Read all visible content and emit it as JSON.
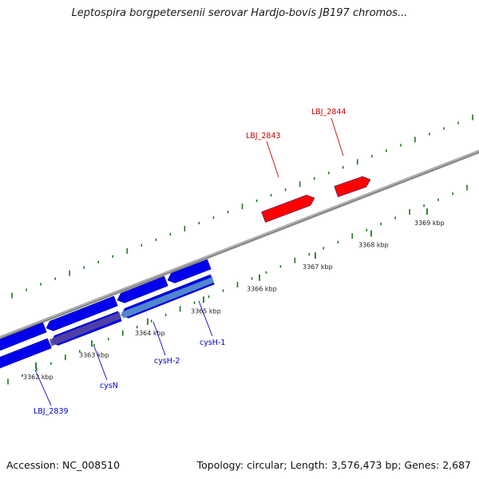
{
  "title": "Leptospira borgpetersenii serovar Hardjo-bovis JB197 chromos...",
  "footer": {
    "accession": "Accession: NC_008510",
    "summary": "Topology: circular; Length: 3,576,473 bp; Genes: 2,687"
  },
  "colors": {
    "forward_gene": "#ff0000",
    "reverse_gene": "#0000ee",
    "reverse_label": "#0000cc",
    "forward_label": "#cc0000",
    "tick": "#1a7a1a",
    "backbone": "#8a8a8a",
    "highlight": "#5a96c8"
  },
  "ticks": [
    {
      "label": "3362 kbp",
      "kbp": 3362
    },
    {
      "label": "3363 kbp",
      "kbp": 3363
    },
    {
      "label": "3364 kbp",
      "kbp": 3364
    },
    {
      "label": "3365 kbp",
      "kbp": 3365
    },
    {
      "label": "3366 kbp",
      "kbp": 3366
    },
    {
      "label": "3367 kbp",
      "kbp": 3367
    },
    {
      "label": "3368 kbp",
      "kbp": 3368
    },
    {
      "label": "3369 kbp",
      "kbp": 3369
    }
  ],
  "gene_labels": [
    {
      "name": "LBJ_2839",
      "strand": "reverse"
    },
    {
      "name": "cysN",
      "strand": "reverse"
    },
    {
      "name": "cysH-2",
      "strand": "reverse"
    },
    {
      "name": "cysH-1",
      "strand": "reverse"
    },
    {
      "name": "LBJ_2843",
      "strand": "forward"
    },
    {
      "name": "LBJ_2844",
      "strand": "forward"
    }
  ]
}
